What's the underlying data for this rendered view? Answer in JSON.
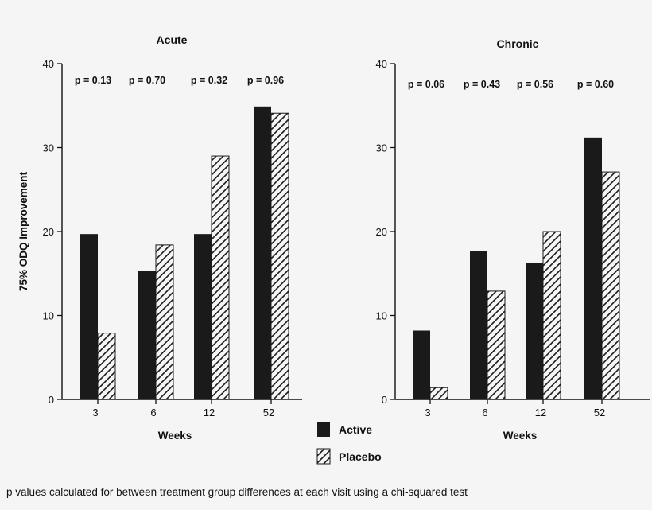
{
  "chart_data": [
    {
      "type": "bar",
      "title": "Acute",
      "categories": [
        "3",
        "6",
        "12",
        "52"
      ],
      "series": [
        {
          "name": "Active",
          "values": [
            19.7,
            15.3,
            19.7,
            34.9
          ]
        },
        {
          "name": "Placebo",
          "values": [
            7.9,
            18.4,
            29.0,
            34.1
          ]
        }
      ],
      "p_values": [
        "p = 0.13",
        "p = 0.70",
        "p = 0.32",
        "p = 0.96"
      ],
      "xlabel": "Weeks",
      "ylabel": "75% ODQ Improvement",
      "ylim": [
        0,
        40
      ],
      "yticks": [
        "0",
        "10",
        "20",
        "30",
        "40"
      ]
    },
    {
      "type": "bar",
      "title": "Chronic",
      "categories": [
        "3",
        "6",
        "12",
        "52"
      ],
      "series": [
        {
          "name": "Active",
          "values": [
            8.2,
            17.7,
            16.3,
            31.2
          ]
        },
        {
          "name": "Placebo",
          "values": [
            1.4,
            12.9,
            20.0,
            27.1
          ]
        }
      ],
      "p_values": [
        "p = 0.06",
        "p = 0.43",
        "p = 0.56",
        "p = 0.60"
      ],
      "xlabel": "Weeks",
      "ylabel": "",
      "ylim": [
        0,
        40
      ],
      "yticks": [
        "0",
        "10",
        "20",
        "30",
        "40"
      ]
    }
  ],
  "legend": {
    "items": [
      {
        "label": "Active",
        "style": "solid"
      },
      {
        "label": "Placebo",
        "style": "hatched"
      }
    ]
  },
  "footnote": "p values calculated for between treatment group differences at each visit using a chi-squared test",
  "colors": {
    "background": "#f5f5f5",
    "bar": "#1a1a1a",
    "text": "#111111"
  }
}
